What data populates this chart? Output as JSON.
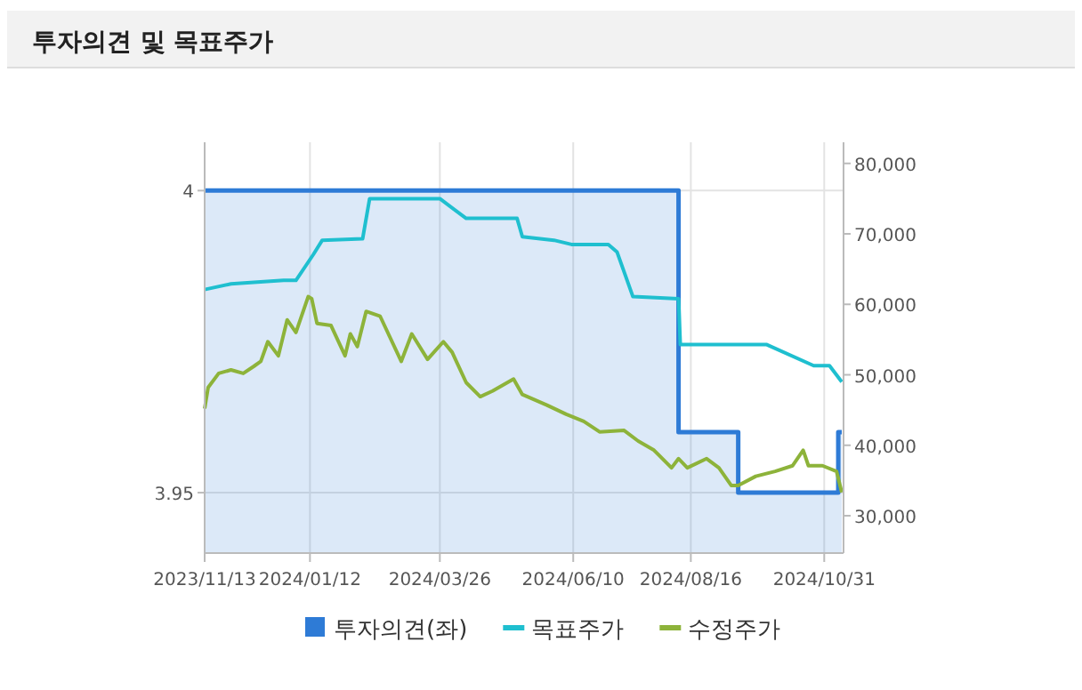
{
  "chart_data": {
    "type": "line",
    "title": "투자의견 및 목표주가",
    "xlim": [
      "2023-11-13",
      "2024-11-11"
    ],
    "xticks": [
      {
        "value": "2023-11-13",
        "label": "2023/11/13"
      },
      {
        "value": "2024-01-12",
        "label": "2024/01/12"
      },
      {
        "value": "2024-03-26",
        "label": "2024/03/26"
      },
      {
        "value": "2024-06-10",
        "label": "2024/06/10"
      },
      {
        "value": "2024-08-16",
        "label": "2024/08/16"
      },
      {
        "value": "2024-10-31",
        "label": "2024/10/31"
      }
    ],
    "ylim": [
      3.94,
      4.008
    ],
    "yticks": [
      4,
      3.95
    ],
    "y2lim": [
      24700,
      83000
    ],
    "y2ticks": [
      {
        "value": 30000,
        "label": "30,000"
      },
      {
        "value": 40000,
        "label": "40,000"
      },
      {
        "value": 50000,
        "label": "50,000"
      },
      {
        "value": 60000,
        "label": "60,000"
      },
      {
        "value": 70000,
        "label": "70,000"
      },
      {
        "value": 80000,
        "label": "80,000"
      }
    ],
    "grid": true,
    "legend": "bottom",
    "series": [
      {
        "name": "투자의견(좌)",
        "type": "area",
        "color": "#2e7bd6",
        "x": [
          "2023-11-13",
          "2024-08-09",
          "2024-08-09",
          "2024-09-12",
          "2024-09-12",
          "2024-11-08",
          "2024-11-08",
          "2024-11-10"
        ],
        "values": [
          4,
          4,
          3.96,
          3.96,
          3.95,
          3.95,
          3.96,
          3.96
        ]
      },
      {
        "name": "목표주가",
        "axis": "y2",
        "color": "#1fbfcf",
        "x": [
          "2023-11-13",
          "2023-11-28",
          "2023-12-28",
          "2024-01-04",
          "2024-01-14",
          "2024-01-19",
          "2024-02-11",
          "2024-02-15",
          "2024-03-26",
          "2024-04-10",
          "2024-05-09",
          "2024-05-12",
          "2024-05-30",
          "2024-06-09",
          "2024-06-30",
          "2024-07-05",
          "2024-07-14",
          "2024-08-09",
          "2024-08-10",
          "2024-09-28",
          "2024-10-25",
          "2024-11-03",
          "2024-11-10"
        ],
        "values": [
          62100,
          62900,
          63400,
          63400,
          67100,
          69100,
          69300,
          75000,
          75000,
          72200,
          72200,
          69600,
          69100,
          68500,
          68500,
          67400,
          61100,
          60800,
          54300,
          54300,
          51300,
          51300,
          49000
        ]
      },
      {
        "name": "수정주가",
        "axis": "y2",
        "color": "#8db33a",
        "x": [
          "2023-11-13",
          "2023-11-15",
          "2023-11-21",
          "2023-11-28",
          "2023-12-05",
          "2023-12-11",
          "2023-12-15",
          "2023-12-19",
          "2023-12-25",
          "2023-12-30",
          "2024-01-04",
          "2024-01-11",
          "2024-01-13",
          "2024-01-16",
          "2024-01-24",
          "2024-02-01",
          "2024-02-04",
          "2024-02-08",
          "2024-02-13",
          "2024-02-21",
          "2024-03-04",
          "2024-03-10",
          "2024-03-19",
          "2024-03-28",
          "2024-04-02",
          "2024-04-10",
          "2024-04-18",
          "2024-04-25",
          "2024-05-07",
          "2024-05-12",
          "2024-05-26",
          "2024-06-06",
          "2024-06-16",
          "2024-06-25",
          "2024-07-09",
          "2024-07-17",
          "2024-07-26",
          "2024-08-05",
          "2024-08-09",
          "2024-08-14",
          "2024-08-25",
          "2024-09-01",
          "2024-09-08",
          "2024-09-12",
          "2024-09-22",
          "2024-10-03",
          "2024-10-13",
          "2024-10-19",
          "2024-10-22",
          "2024-10-30",
          "2024-11-07",
          "2024-11-10"
        ],
        "values": [
          45200,
          48200,
          50200,
          50700,
          50200,
          51200,
          51900,
          54700,
          52700,
          57800,
          56000,
          61100,
          60800,
          57300,
          57000,
          52700,
          55800,
          54000,
          59000,
          58300,
          51900,
          55800,
          52200,
          54700,
          53200,
          48900,
          46900,
          47700,
          49400,
          47200,
          45700,
          44400,
          43400,
          41900,
          42100,
          40600,
          39300,
          36800,
          38100,
          36800,
          38100,
          36800,
          34300,
          34300,
          35600,
          36300,
          37100,
          39300,
          37100,
          37100,
          36300,
          33300
        ]
      }
    ]
  }
}
